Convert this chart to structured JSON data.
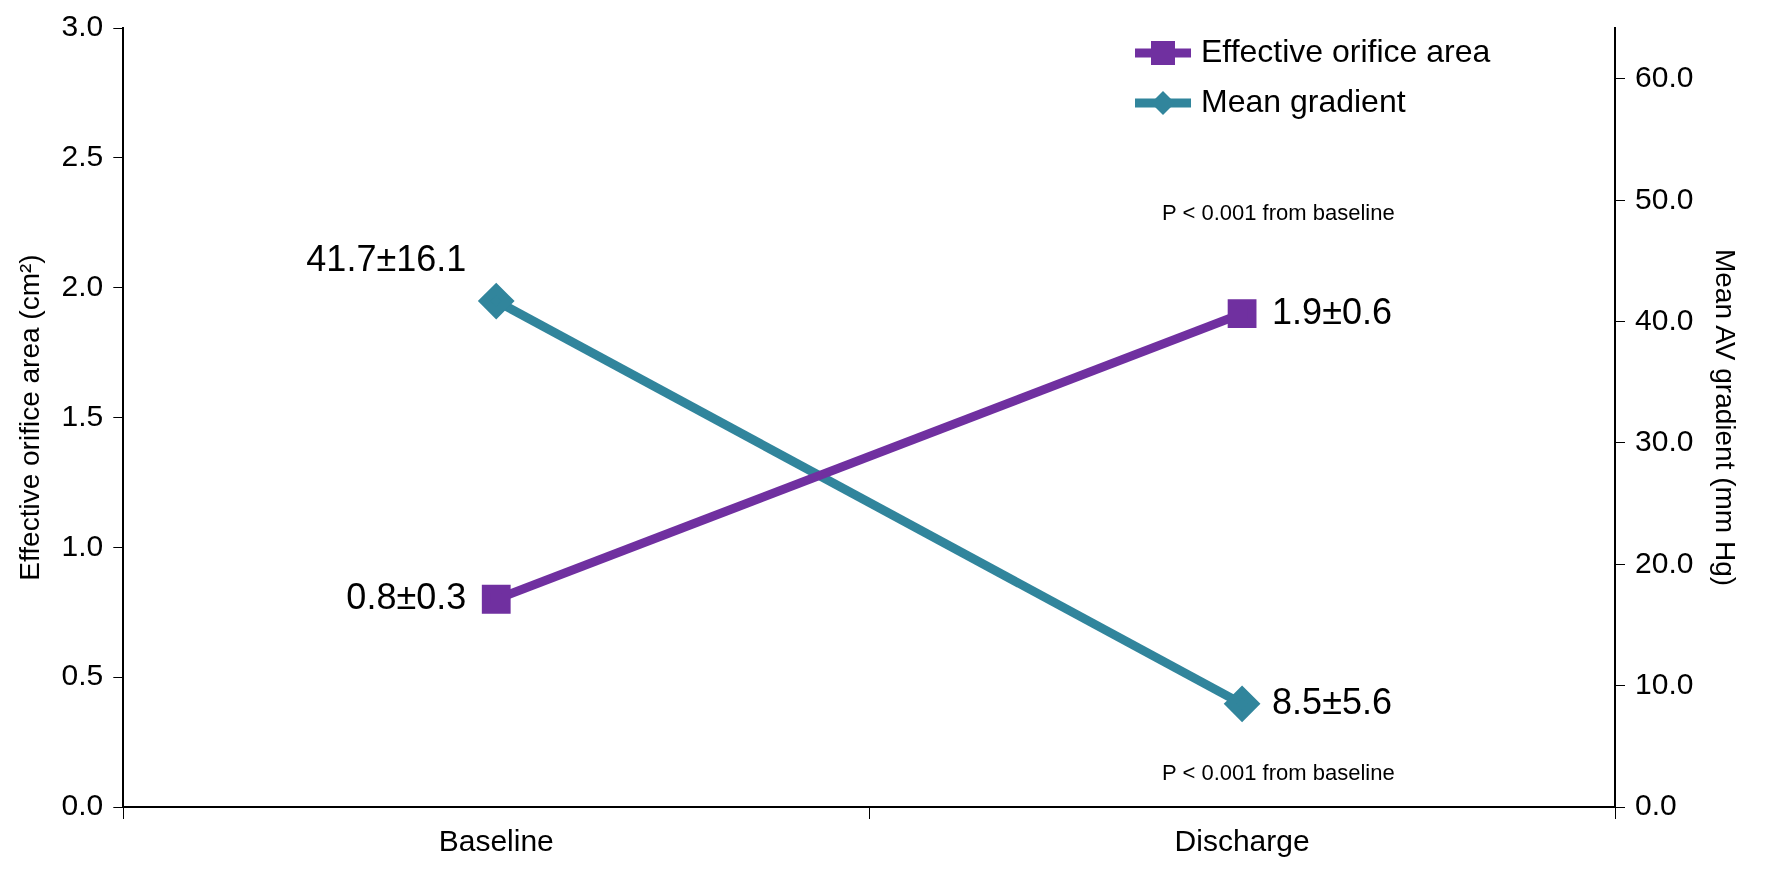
{
  "chart_data": {
    "type": "line",
    "categories": [
      "Baseline",
      "Discharge"
    ],
    "ylabel": "Effective orifice area (cm²)",
    "y2label": "Mean AV gradient (mm Hg)",
    "series": [
      {
        "name": "Effective orifice area",
        "color": "#7030a0",
        "values": [
          0.8,
          1.9
        ],
        "marker": "square",
        "value_labels": [
          "0.8±0.3",
          "1.9±0.6"
        ]
      },
      {
        "name": "Mean gradient",
        "color": "#31859c",
        "values": [
          41.7,
          8.5
        ],
        "axis": "y2",
        "marker": "diamond",
        "value_labels": [
          "41.7±16.1",
          "8.5±5.6"
        ]
      }
    ],
    "ylim": [
      0,
      3
    ],
    "yticks": [
      {
        "value": 0,
        "label": "0.0"
      },
      {
        "value": 0.5,
        "label": "0.5"
      },
      {
        "value": 1,
        "label": "1.0"
      },
      {
        "value": 1.5,
        "label": "1.5"
      },
      {
        "value": 2,
        "label": "2.0"
      },
      {
        "value": 2.5,
        "label": "2.5"
      },
      {
        "value": 3,
        "label": "3.0"
      }
    ],
    "y2lim": [
      0,
      64.2
    ],
    "y2ticks": [
      {
        "value": 0,
        "label": "0.0"
      },
      {
        "value": 10,
        "label": "10.0"
      },
      {
        "value": 20,
        "label": "20.0"
      },
      {
        "value": 30,
        "label": "30.0"
      },
      {
        "value": 40,
        "label": "40.0"
      },
      {
        "value": 50,
        "label": "50.0"
      },
      {
        "value": 60,
        "label": "60.0"
      }
    ],
    "annotations": [
      "P < 0.001 from baseline",
      "P < 0.001 from baseline"
    ],
    "legend": "top right",
    "grid": false,
    "line_style": "solid"
  }
}
